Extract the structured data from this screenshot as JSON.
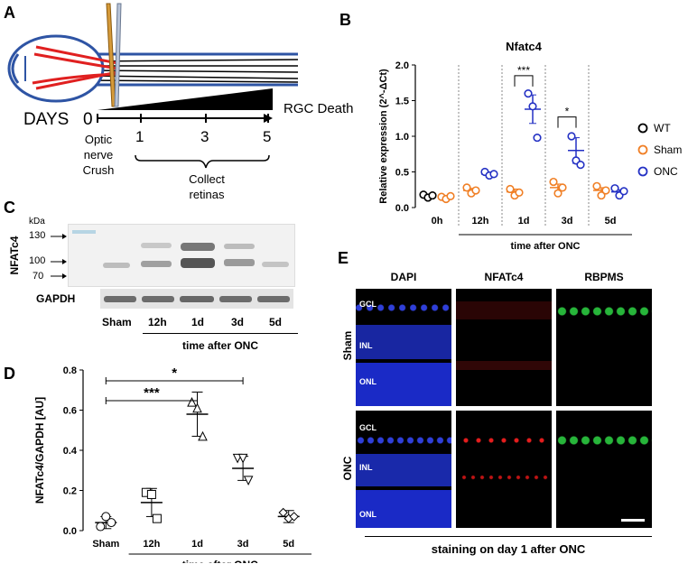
{
  "panels": {
    "a": {
      "label": "A",
      "days_label": "DAYS",
      "rgc_death": "RGC Death",
      "ticks": [
        "0",
        "1",
        "3",
        "5"
      ],
      "crush_label": [
        "Optic",
        "nerve",
        "Crush"
      ],
      "collect_label": [
        "Collect",
        "retinas"
      ]
    },
    "b": {
      "label": "B",
      "chart_data": {
        "type": "scatter",
        "title": "Nfatc4",
        "ylabel": "Relative expression (2^-ΔCt)",
        "xlabel": "time after ONC",
        "ylim": [
          0,
          2.0
        ],
        "yticks": [
          "0.0",
          "0.5",
          "1.0",
          "1.5",
          "2.0"
        ],
        "groups": [
          "0h",
          "12h",
          "1d",
          "3d",
          "5d"
        ],
        "legend": [
          "WT",
          "Sham",
          "ONC"
        ],
        "colors": {
          "WT": "#000000",
          "Sham": "#f07f25",
          "ONC": "#2431c4"
        },
        "series": [
          {
            "name": "WT",
            "group": "0h",
            "points": [
              0.18,
              0.14,
              0.17
            ],
            "mean": 0.16,
            "sem": 0.02
          },
          {
            "name": "Sham",
            "group": "0h",
            "points": [
              0.15,
              0.12,
              0.16
            ],
            "mean": 0.14,
            "sem": 0.02
          },
          {
            "name": "Sham",
            "group": "12h",
            "points": [
              0.28,
              0.2,
              0.24
            ],
            "mean": 0.24,
            "sem": 0.03
          },
          {
            "name": "ONC",
            "group": "12h",
            "points": [
              0.5,
              0.45,
              0.47
            ],
            "mean": 0.47,
            "sem": 0.02
          },
          {
            "name": "Sham",
            "group": "1d",
            "points": [
              0.26,
              0.17,
              0.21
            ],
            "mean": 0.22,
            "sem": 0.04
          },
          {
            "name": "ONC",
            "group": "1d",
            "points": [
              1.6,
              1.42,
              0.98
            ],
            "mean": 1.38,
            "sem": 0.2
          },
          {
            "name": "Sham",
            "group": "3d",
            "points": [
              0.36,
              0.2,
              0.28
            ],
            "mean": 0.28,
            "sem": 0.05
          },
          {
            "name": "ONC",
            "group": "3d",
            "points": [
              1.0,
              0.66,
              0.6
            ],
            "mean": 0.8,
            "sem": 0.18
          },
          {
            "name": "Sham",
            "group": "5d",
            "points": [
              0.3,
              0.17,
              0.24
            ],
            "mean": 0.24,
            "sem": 0.04
          },
          {
            "name": "ONC",
            "group": "5d",
            "points": [
              0.27,
              0.17,
              0.23
            ],
            "mean": 0.22,
            "sem": 0.03
          }
        ],
        "significance": [
          {
            "group": "1d",
            "label": "***"
          },
          {
            "group": "3d",
            "label": "*"
          }
        ]
      }
    },
    "c": {
      "label": "C",
      "kda": "kDa",
      "markers": [
        "130",
        "100",
        "70"
      ],
      "protein": "NFATc4",
      "loading": "GAPDH",
      "lanes": [
        "Sham",
        "12h",
        "1d",
        "3d",
        "5d"
      ],
      "xlabel": "time after ONC"
    },
    "d": {
      "label": "D",
      "chart_data": {
        "type": "scatter",
        "ylabel": "NFATc4/GAPDH [AU]",
        "xlabel": "time after ONC",
        "ylim": [
          0,
          0.8
        ],
        "yticks": [
          "0.0",
          "0.2",
          "0.4",
          "0.6",
          "0.8"
        ],
        "categories": [
          "Sham",
          "12h",
          "1d",
          "3d",
          "5d"
        ],
        "series": [
          {
            "category": "Sham",
            "marker": "circle",
            "points": [
              0.02,
              0.07,
              0.04
            ],
            "mean": 0.04,
            "sd": 0.03
          },
          {
            "category": "12h",
            "marker": "square",
            "points": [
              0.19,
              0.18,
              0.06
            ],
            "mean": 0.14,
            "sd": 0.07
          },
          {
            "category": "1d",
            "marker": "triangle-up",
            "points": [
              0.64,
              0.61,
              0.47
            ],
            "mean": 0.58,
            "sd": 0.11
          },
          {
            "category": "3d",
            "marker": "triangle-down",
            "points": [
              0.36,
              0.36,
              0.25
            ],
            "mean": 0.31,
            "sd": 0.06
          },
          {
            "category": "5d",
            "marker": "diamond",
            "points": [
              0.09,
              0.06,
              0.07
            ],
            "mean": 0.07,
            "sd": 0.03
          }
        ],
        "significance": [
          {
            "from": "Sham",
            "to": "3d",
            "label": "*"
          },
          {
            "from": "Sham",
            "to": "1d",
            "label": "***"
          }
        ]
      }
    },
    "e": {
      "label": "E",
      "columns": [
        "DAPI",
        "NFATc4",
        "RBPMS"
      ],
      "rows": [
        "Sham",
        "ONC"
      ],
      "layers": [
        "GCL",
        "INL",
        "ONL"
      ],
      "caption": "staining on day 1 after ONC"
    }
  }
}
